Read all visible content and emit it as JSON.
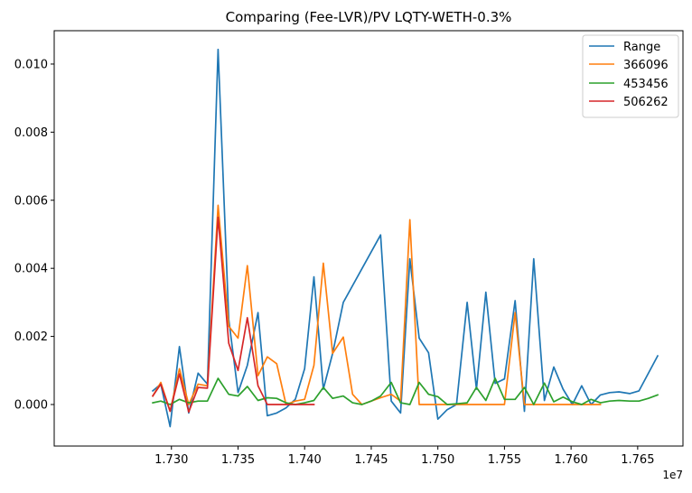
{
  "chart_data": {
    "type": "line",
    "title": "Comparing (Fee-LVR)/PV LQTY-WETH-0.3%",
    "xlabel": "",
    "ylabel": "",
    "x_offset_label": "1e7",
    "xlim": [
      17212000,
      17684000
    ],
    "ylim": [
      -0.00122,
      0.01098
    ],
    "x_ticks": [
      17300000,
      17350000,
      17400000,
      17450000,
      17500000,
      17550000,
      17600000,
      17650000
    ],
    "x_tick_labels": [
      "1.730",
      "1.735",
      "1.740",
      "1.745",
      "1.750",
      "1.755",
      "1.760",
      "1.765"
    ],
    "y_ticks": [
      0,
      0.002,
      0.004,
      0.006,
      0.008,
      0.01
    ],
    "y_tick_labels": [
      "0.000",
      "0.002",
      "0.004",
      "0.006",
      "0.008",
      "0.010"
    ],
    "grid": false,
    "legend_position": "top-right",
    "series": [
      {
        "name": "Range",
        "color": "#1f77b4",
        "x": [
          17286000,
          17292000,
          17299000,
          17306000,
          17313000,
          17320000,
          17327000,
          17335000,
          17343000,
          17350000,
          17357000,
          17365000,
          17372000,
          17379000,
          17386000,
          17393000,
          17400000,
          17407000,
          17414000,
          17421000,
          17429000,
          17457000,
          17465000,
          17472000,
          17479000,
          17486000,
          17493000,
          17500000,
          17507000,
          17514000,
          17522000,
          17529000,
          17536000,
          17543000,
          17550000,
          17558000,
          17565000,
          17572000,
          17580000,
          17587000,
          17594000,
          17601000,
          17608000,
          17615000,
          17622000,
          17629000,
          17636000,
          17644000,
          17651000,
          17665000
        ],
        "y": [
          0.0004,
          0.0006,
          -0.00065,
          0.0017,
          -0.00025,
          0.00092,
          0.0006,
          0.01043,
          0.0025,
          0.00035,
          0.00115,
          0.0027,
          -0.00033,
          -0.00025,
          -0.0001,
          0.00015,
          0.00105,
          0.00375,
          0.00045,
          0.0015,
          0.003,
          0.00498,
          0.0001,
          -0.00025,
          0.00428,
          0.00195,
          0.00152,
          -0.00043,
          -0.00015,
          0.0,
          0.003,
          0.00045,
          0.0033,
          0.00062,
          0.00075,
          0.00305,
          -0.0002,
          0.00428,
          0.00012,
          0.0011,
          0.00045,
          0.0,
          0.00055,
          0.0,
          0.00028,
          0.00035,
          0.00037,
          0.00032,
          0.0004,
          0.00143
        ]
      },
      {
        "name": "366096",
        "color": "#ff7f0e",
        "x": [
          17286000,
          17292000,
          17299000,
          17306000,
          17313000,
          17320000,
          17327000,
          17335000,
          17343000,
          17350000,
          17357000,
          17365000,
          17372000,
          17379000,
          17386000,
          17393000,
          17400000,
          17407000,
          17414000,
          17421000,
          17429000,
          17436000,
          17443000,
          17450000,
          17457000,
          17465000,
          17472000,
          17479000,
          17486000,
          17493000,
          17500000,
          17507000,
          17514000,
          17522000,
          17529000,
          17536000,
          17543000,
          17550000,
          17558000,
          17565000,
          17572000,
          17580000,
          17587000,
          17594000,
          17601000,
          17608000,
          17615000,
          17622000
        ],
        "y": [
          0.00025,
          0.00065,
          -0.0002,
          0.00105,
          0.0,
          0.0006,
          0.00055,
          0.00585,
          0.0023,
          0.00195,
          0.00408,
          0.00085,
          0.0014,
          0.0012,
          0.0,
          0.0001,
          0.00015,
          0.00115,
          0.00415,
          0.0015,
          0.00198,
          0.0003,
          0.0,
          0.0001,
          0.0002,
          0.0003,
          0.0001,
          0.00543,
          0.0,
          0.0,
          0.0,
          0.0,
          0.0,
          0.0,
          0.0,
          0.0,
          0.0,
          0.0,
          0.0027,
          0.0,
          0.0,
          0.0,
          0.0,
          0.0,
          0.0,
          0.0,
          0.0,
          0.0
        ]
      },
      {
        "name": "453456",
        "color": "#2ca02c",
        "x": [
          17286000,
          17292000,
          17299000,
          17306000,
          17313000,
          17320000,
          17327000,
          17335000,
          17343000,
          17350000,
          17357000,
          17365000,
          17372000,
          17379000,
          17386000,
          17393000,
          17400000,
          17407000,
          17414000,
          17421000,
          17429000,
          17436000,
          17443000,
          17450000,
          17457000,
          17465000,
          17472000,
          17479000,
          17486000,
          17493000,
          17500000,
          17507000,
          17514000,
          17522000,
          17529000,
          17536000,
          17543000,
          17550000,
          17558000,
          17565000,
          17572000,
          17580000,
          17587000,
          17594000,
          17601000,
          17608000,
          17615000,
          17622000,
          17629000,
          17636000,
          17644000,
          17651000,
          17658000,
          17665000
        ],
        "y": [
          5e-05,
          0.0001,
          0.0,
          0.00015,
          5e-05,
          0.0001,
          0.0001,
          0.00077,
          0.0003,
          0.00025,
          0.00053,
          0.00012,
          0.0002,
          0.00018,
          5e-05,
          0.0,
          5e-05,
          0.00012,
          0.0005,
          0.00018,
          0.00025,
          5e-05,
          0.0,
          0.0001,
          0.00025,
          0.00065,
          5e-05,
          0.0,
          0.00065,
          0.0003,
          0.00023,
          0.0,
          2e-05,
          5e-05,
          0.0005,
          0.00012,
          0.00077,
          0.00015,
          0.00015,
          0.0005,
          0.0,
          0.00063,
          8e-05,
          0.00022,
          8e-05,
          0.0,
          0.00015,
          5e-05,
          0.0001,
          0.00012,
          0.0001,
          0.0001,
          0.00018,
          0.00028
        ]
      },
      {
        "name": "506262",
        "color": "#d62728",
        "x": [
          17286000,
          17292000,
          17299000,
          17306000,
          17313000,
          17320000,
          17327000,
          17335000,
          17343000,
          17350000,
          17357000,
          17365000,
          17372000,
          17379000,
          17386000,
          17393000,
          17400000,
          17407000
        ],
        "y": [
          0.00025,
          0.0006,
          -0.0002,
          0.0009,
          -0.00022,
          0.0005,
          0.00048,
          0.0055,
          0.0018,
          0.001,
          0.00255,
          0.00055,
          0.0,
          0.0,
          0.0,
          0.0,
          0.0,
          0.0
        ]
      }
    ]
  }
}
